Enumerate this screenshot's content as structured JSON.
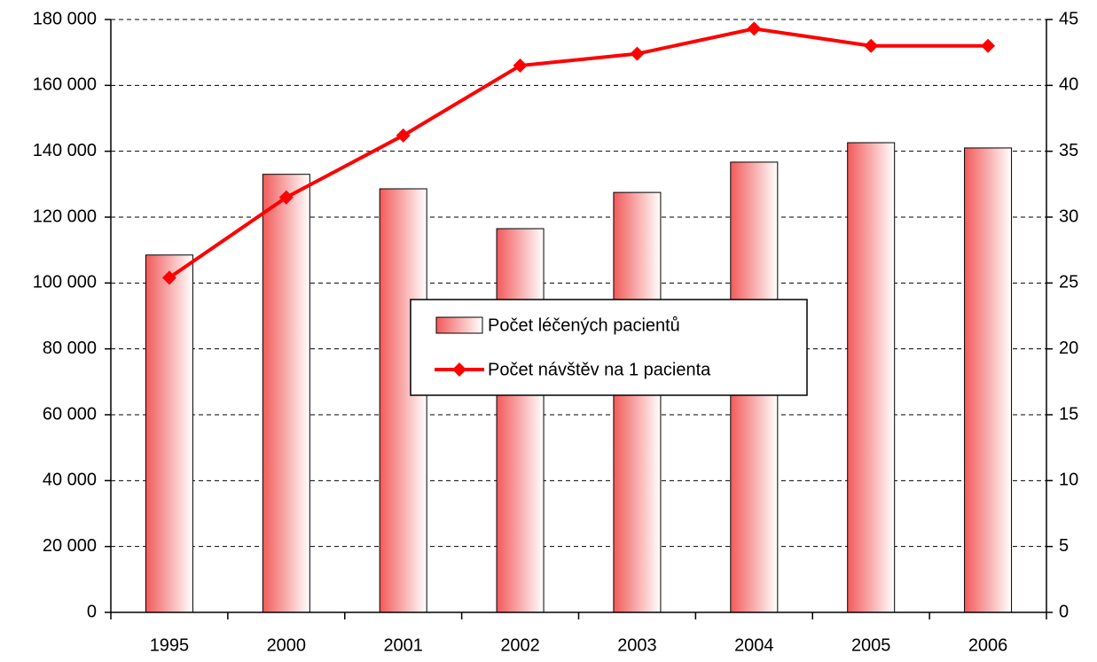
{
  "chart_data": {
    "type": "bar-line",
    "categories": [
      "1995",
      "2000",
      "2001",
      "2002",
      "2003",
      "2004",
      "2005",
      "2006"
    ],
    "series": [
      {
        "name": "Počet léčených pacientů",
        "type": "bar",
        "color": "#f25a5a",
        "values": [
          108500,
          133000,
          128600,
          116500,
          127500,
          136700,
          142600,
          141000
        ]
      },
      {
        "name": "Počet návštěv na 1 pacienta",
        "type": "line",
        "axis": "y2",
        "color": "#ff0000",
        "values": [
          25.4,
          31.5,
          36.2,
          41.5,
          42.4,
          44.3,
          43.0,
          43.0
        ]
      }
    ],
    "ylim": [
      0,
      180000
    ],
    "yticks": [
      0,
      {
        "value": 20000,
        "label": "20 000"
      },
      {
        "value": 40000,
        "label": "40 000"
      },
      {
        "value": 60000,
        "label": "60 000"
      },
      {
        "value": 80000,
        "label": "80 000"
      },
      {
        "value": 100000,
        "label": "100 000"
      },
      {
        "value": 120000,
        "label": "120 000"
      },
      {
        "value": 140000,
        "label": "140 000"
      },
      {
        "value": 160000,
        "label": "160 000"
      },
      {
        "value": 180000,
        "label": "180 000"
      }
    ],
    "y2lim": [
      0,
      45
    ],
    "y2ticks": [
      0,
      5,
      10,
      15,
      20,
      25,
      30,
      35,
      40,
      45
    ],
    "grid": true,
    "legend": "center"
  }
}
